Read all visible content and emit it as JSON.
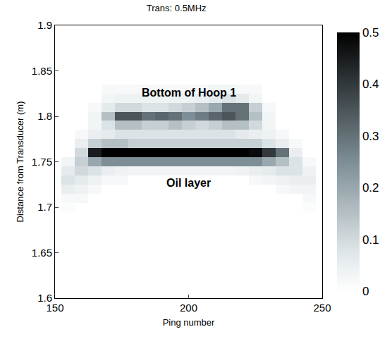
{
  "chart_data": {
    "type": "heatmap",
    "title": "Trans: 0.5MHz",
    "x_label": "Ping number",
    "y_label": "Distance from Transducer (m)",
    "x": [
      150,
      155,
      160,
      165,
      170,
      175,
      180,
      185,
      190,
      195,
      200,
      205,
      210,
      215,
      220,
      225,
      230,
      235,
      240,
      245,
      250
    ],
    "y": [
      1.6,
      1.61,
      1.62,
      1.63,
      1.64,
      1.65,
      1.66,
      1.67,
      1.68,
      1.69,
      1.7,
      1.71,
      1.72,
      1.73,
      1.74,
      1.75,
      1.76,
      1.77,
      1.78,
      1.79,
      1.8,
      1.81,
      1.82,
      1.83,
      1.84,
      1.85,
      1.86,
      1.87,
      1.88,
      1.89,
      1.9
    ],
    "z": [
      [
        0,
        0,
        0,
        0,
        0,
        0,
        0,
        0,
        0,
        0,
        0,
        0,
        0,
        0,
        0,
        0,
        0,
        0,
        0,
        0,
        0
      ],
      [
        0,
        0,
        0,
        0,
        0,
        0,
        0,
        0,
        0,
        0,
        0,
        0,
        0,
        0,
        0,
        0,
        0,
        0,
        0,
        0,
        0
      ],
      [
        0,
        0,
        0,
        0,
        0,
        0,
        0,
        0,
        0,
        0,
        0,
        0,
        0,
        0,
        0,
        0,
        0,
        0,
        0,
        0,
        0
      ],
      [
        0,
        0,
        0,
        0,
        0,
        0,
        0,
        0,
        0,
        0,
        0,
        0,
        0,
        0,
        0,
        0,
        0,
        0,
        0,
        0,
        0
      ],
      [
        0,
        0,
        0,
        0,
        0,
        0,
        0,
        0,
        0,
        0,
        0,
        0,
        0,
        0,
        0,
        0,
        0,
        0,
        0,
        0,
        0
      ],
      [
        0,
        0,
        0,
        0,
        0,
        0,
        0,
        0,
        0,
        0,
        0,
        0,
        0,
        0,
        0,
        0,
        0,
        0,
        0,
        0,
        0
      ],
      [
        0,
        0,
        0,
        0,
        0,
        0,
        0,
        0,
        0,
        0,
        0,
        0,
        0,
        0,
        0,
        0,
        0,
        0,
        0,
        0,
        0
      ],
      [
        0,
        0,
        0,
        0,
        0,
        0,
        0,
        0,
        0,
        0,
        0,
        0,
        0,
        0,
        0,
        0,
        0,
        0,
        0,
        0,
        0
      ],
      [
        0,
        0,
        0,
        0,
        0,
        0,
        0,
        0,
        0,
        0,
        0,
        0,
        0,
        0,
        0,
        0,
        0,
        0,
        0,
        0,
        0
      ],
      [
        0,
        0,
        0,
        0,
        0,
        0,
        0,
        0,
        0,
        0,
        0,
        0,
        0,
        0,
        0,
        0,
        0,
        0,
        0,
        0,
        0
      ],
      [
        0,
        0.01,
        0,
        0,
        0,
        0,
        0,
        0,
        0,
        0,
        0,
        0,
        0,
        0,
        0,
        0,
        0,
        0,
        0,
        0.01,
        0
      ],
      [
        0,
        0.02,
        0.02,
        0,
        0,
        0,
        0,
        0,
        0,
        0,
        0,
        0,
        0,
        0,
        0,
        0,
        0,
        0,
        0,
        0.02,
        0
      ],
      [
        0,
        0.05,
        0.04,
        0.02,
        0,
        0,
        0,
        0,
        0,
        0,
        0,
        0,
        0,
        0,
        0,
        0,
        0,
        0.02,
        0.03,
        0.03,
        0
      ],
      [
        0,
        0.08,
        0.06,
        0.04,
        0.02,
        0.02,
        0,
        0,
        0,
        0,
        0,
        0,
        0,
        0,
        0,
        0.02,
        0.03,
        0.04,
        0.05,
        0.05,
        0
      ],
      [
        0,
        0.06,
        0.1,
        0.08,
        0.05,
        0.04,
        0.03,
        0.03,
        0.03,
        0.03,
        0.03,
        0.03,
        0.03,
        0.03,
        0.04,
        0.05,
        0.06,
        0.08,
        0.08,
        0.04,
        0
      ],
      [
        0,
        0.03,
        0.12,
        0.2,
        0.25,
        0.25,
        0.25,
        0.25,
        0.25,
        0.25,
        0.25,
        0.25,
        0.25,
        0.25,
        0.25,
        0.25,
        0.2,
        0.15,
        0.08,
        0.02,
        0
      ],
      [
        0,
        0,
        0.1,
        0.45,
        0.5,
        0.5,
        0.5,
        0.5,
        0.5,
        0.5,
        0.5,
        0.5,
        0.5,
        0.5,
        0.5,
        0.48,
        0.4,
        0.3,
        0.05,
        0,
        0
      ],
      [
        0,
        0,
        0.05,
        0.12,
        0.15,
        0.15,
        0.12,
        0.12,
        0.12,
        0.12,
        0.12,
        0.12,
        0.12,
        0.12,
        0.12,
        0.12,
        0.08,
        0.05,
        0.02,
        0,
        0
      ],
      [
        0,
        0,
        0.02,
        0.05,
        0.06,
        0.08,
        0.08,
        0.08,
        0.08,
        0.08,
        0.08,
        0.08,
        0.08,
        0.08,
        0.06,
        0.05,
        0.04,
        0.02,
        0,
        0,
        0
      ],
      [
        0,
        0,
        0,
        0.03,
        0.08,
        0.15,
        0.15,
        0.12,
        0.12,
        0.15,
        0.12,
        0.1,
        0.12,
        0.15,
        0.15,
        0.1,
        0.03,
        0,
        0,
        0,
        0
      ],
      [
        0,
        0,
        0,
        0.03,
        0.15,
        0.35,
        0.35,
        0.3,
        0.32,
        0.3,
        0.25,
        0.28,
        0.32,
        0.35,
        0.3,
        0.15,
        0.03,
        0,
        0,
        0,
        0
      ],
      [
        0,
        0,
        0,
        0.02,
        0.06,
        0.1,
        0.1,
        0.08,
        0.08,
        0.1,
        0.12,
        0.15,
        0.2,
        0.3,
        0.3,
        0.12,
        0.02,
        0,
        0,
        0,
        0
      ],
      [
        0,
        0,
        0,
        0,
        0.03,
        0.04,
        0.04,
        0.04,
        0.04,
        0.04,
        0.04,
        0.05,
        0.06,
        0.08,
        0.06,
        0.03,
        0,
        0,
        0,
        0,
        0
      ],
      [
        0,
        0,
        0,
        0,
        0.02,
        0.02,
        0.02,
        0.02,
        0.02,
        0.02,
        0.02,
        0.02,
        0.03,
        0.03,
        0.02,
        0.02,
        0,
        0,
        0,
        0,
        0
      ],
      [
        0,
        0,
        0,
        0,
        0,
        0,
        0,
        0,
        0,
        0,
        0,
        0,
        0,
        0,
        0,
        0,
        0,
        0,
        0,
        0,
        0
      ],
      [
        0,
        0,
        0,
        0,
        0,
        0,
        0,
        0,
        0,
        0,
        0,
        0,
        0,
        0,
        0,
        0,
        0,
        0,
        0,
        0,
        0
      ],
      [
        0,
        0,
        0,
        0,
        0,
        0,
        0,
        0,
        0,
        0,
        0,
        0,
        0,
        0,
        0,
        0,
        0,
        0,
        0,
        0,
        0
      ],
      [
        0,
        0,
        0,
        0,
        0,
        0,
        0,
        0,
        0,
        0,
        0,
        0,
        0,
        0,
        0,
        0,
        0,
        0,
        0,
        0,
        0
      ],
      [
        0,
        0,
        0,
        0,
        0,
        0,
        0,
        0,
        0,
        0,
        0,
        0,
        0,
        0,
        0,
        0,
        0,
        0,
        0,
        0,
        0
      ],
      [
        0,
        0,
        0,
        0,
        0,
        0,
        0,
        0,
        0,
        0,
        0,
        0,
        0,
        0,
        0,
        0,
        0,
        0,
        0,
        0,
        0
      ],
      [
        0,
        0,
        0,
        0,
        0,
        0,
        0,
        0,
        0,
        0,
        0,
        0,
        0,
        0,
        0,
        0,
        0,
        0,
        0,
        0,
        0
      ]
    ],
    "xlim": [
      150,
      250
    ],
    "xticks": [
      150,
      200,
      250
    ],
    "ylim": [
      1.6,
      1.9
    ],
    "yticks": [
      1.6,
      1.65,
      1.7,
      1.75,
      1.8,
      1.85,
      1.9
    ],
    "colorbar": {
      "range": [
        0,
        0.5
      ],
      "ticks": [
        0,
        0.1,
        0.2,
        0.3,
        0.4,
        0.5
      ]
    },
    "annotations": [
      {
        "text": "Bottom of Hoop 1",
        "x": 200,
        "y": 1.826
      },
      {
        "text": "Oil layer",
        "x": 200,
        "y": 1.727
      }
    ],
    "grid": false
  }
}
